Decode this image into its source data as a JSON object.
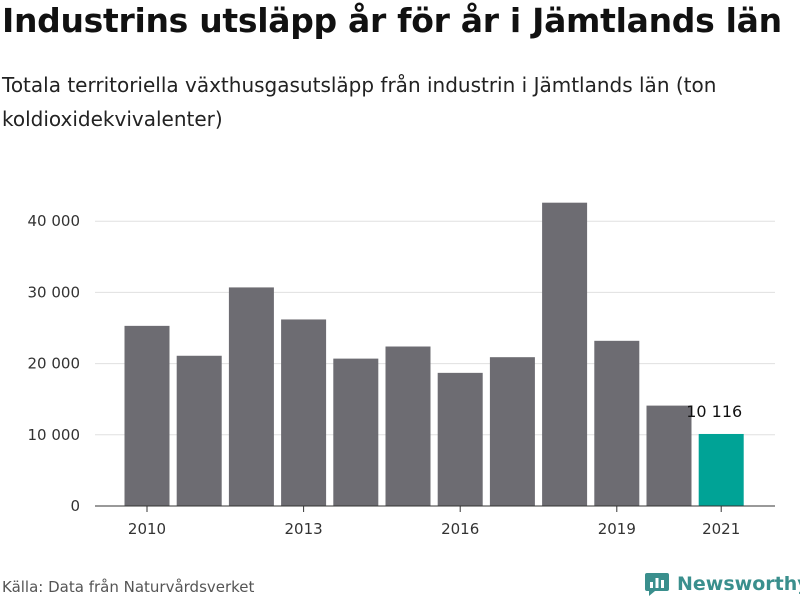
{
  "title": "Industrins utsläpp år för år i Jämtlands län",
  "subtitle": "Totala territoriella växthusgasutsläpp från industrin i Jämtlands län (ton koldioxidekvivalenter)",
  "source": "Källa: Data från Naturvårdsverket",
  "brand": "Newsworthy",
  "colors": {
    "bar": "#6d6c72",
    "highlight": "#00a396",
    "grid": "#e0e0e0",
    "axis": "#333333",
    "brand": "#3a8f8d"
  },
  "chart_data": {
    "type": "bar",
    "categories": [
      "2010",
      "2011",
      "2012",
      "2013",
      "2014",
      "2015",
      "2016",
      "2017",
      "2018",
      "2019",
      "2020",
      "2021"
    ],
    "values": [
      25300,
      21100,
      30700,
      26200,
      20700,
      22400,
      18700,
      20900,
      42600,
      23200,
      14100,
      10116
    ],
    "xticks": [
      "2010",
      "2013",
      "2016",
      "2019",
      "2021"
    ],
    "yticks": [
      0,
      10000,
      20000,
      30000,
      40000
    ],
    "ytick_labels": [
      "0",
      "10 000",
      "20 000",
      "30 000",
      "40 000"
    ],
    "ylim": [
      0,
      45000
    ],
    "highlight_category": "2021",
    "highlight_label": "10 116",
    "grid": true,
    "xlabel": "",
    "ylabel": ""
  }
}
